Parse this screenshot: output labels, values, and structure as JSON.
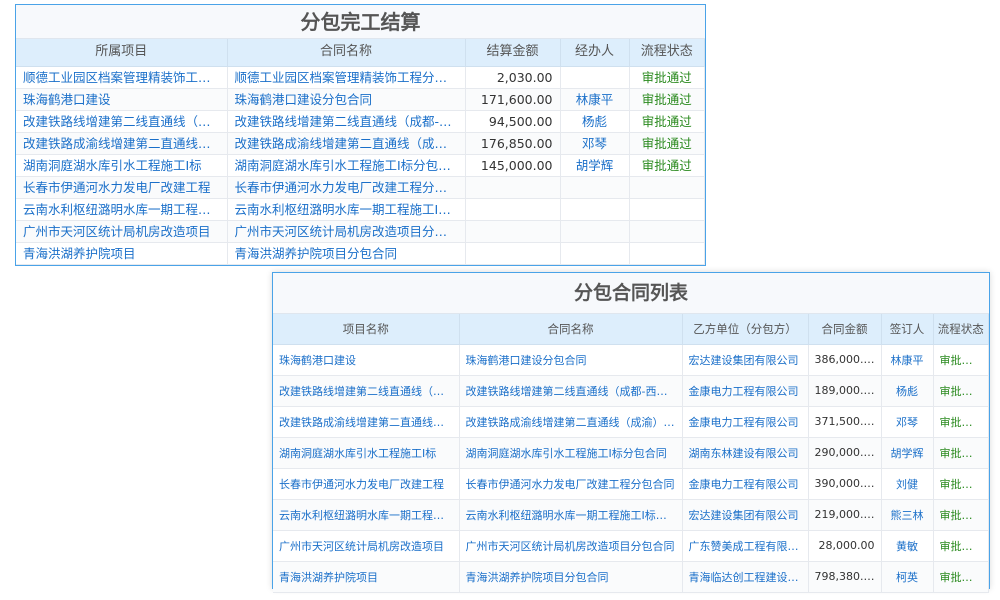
{
  "settlement": {
    "title": "分包完工结算",
    "headers": [
      "所属项目",
      "合同名称",
      "结算金额",
      "经办人",
      "流程状态"
    ],
    "rows": [
      [
        "顺德工业园区档案管理精装饰工程项目",
        "顺德工业园区档案管理精装饰工程分包合同",
        "2,030.00",
        "",
        "审批通过"
      ],
      [
        "珠海鹤港口建设",
        "珠海鹤港口建设分包合同",
        "171,600.00",
        "林康平",
        "审批通过"
      ],
      [
        "改建铁路线增建第二线直通线（成都-西安）",
        "改建铁路线增建第二线直通线（成都-西安）分包合同",
        "94,500.00",
        "杨彪",
        "审批通过"
      ],
      [
        "改建铁路成渝线增建第二直通线项目",
        "改建铁路成渝线增建第二直通线（成渝）分包合同",
        "176,850.00",
        "邓琴",
        "审批通过"
      ],
      [
        "湖南洞庭湖水库引水工程施工Ⅰ标",
        "湖南洞庭湖水库引水工程施工Ⅰ标分包合同",
        "145,000.00",
        "胡学辉",
        "审批通过"
      ],
      [
        "长春市伊通河水力发电厂改建工程",
        "长春市伊通河水力发电厂改建工程分包合同",
        "",
        "",
        ""
      ],
      [
        "云南水利枢纽潞明水库一期工程施工Ⅰ标",
        "云南水利枢纽潞明水库一期工程施工Ⅰ标分包合同",
        "",
        "",
        ""
      ],
      [
        "广州市天河区统计局机房改造项目",
        "广州市天河区统计局机房改造项目分包合同",
        "",
        "",
        ""
      ],
      [
        "青海洪湖养护院项目",
        "青海洪湖养护院项目分包合同",
        "",
        "",
        ""
      ]
    ]
  },
  "contracts": {
    "title": "分包合同列表",
    "headers": [
      "项目名称",
      "合同名称",
      "乙方单位（分包方）",
      "合同金额",
      "签订人",
      "流程状态"
    ],
    "rows": [
      [
        "珠海鹤港口建设",
        "珠海鹤港口建设分包合同",
        "宏达建设集团有限公司",
        "386,000.00",
        "林康平",
        "审批通过"
      ],
      [
        "改建铁路线增建第二线直通线（成都-西安）",
        "改建铁路线增建第二线直通线（成都-西安）分包合同",
        "金康电力工程有限公司",
        "189,000.00",
        "杨彪",
        "审批通过"
      ],
      [
        "改建铁路成渝线增建第二直通线项目",
        "改建铁路成渝线增建第二直通线（成渝）分包合同",
        "金康电力工程有限公司",
        "371,500.00",
        "邓琴",
        "审批通过"
      ],
      [
        "湖南洞庭湖水库引水工程施工Ⅰ标",
        "湖南洞庭湖水库引水工程施工Ⅰ标分包合同",
        "湖南东林建设有限公司",
        "290,000.00",
        "胡学辉",
        "审批通过"
      ],
      [
        "长春市伊通河水力发电厂改建工程",
        "长春市伊通河水力发电厂改建工程分包合同",
        "金康电力工程有限公司",
        "390,000.00",
        "刘健",
        "审批通过"
      ],
      [
        "云南水利枢纽潞明水库一期工程施工Ⅰ标",
        "云南水利枢纽潞明水库一期工程施工Ⅰ标分包合同",
        "宏达建设集团有限公司",
        "219,000.00",
        "熊三林",
        "审批通过"
      ],
      [
        "广州市天河区统计局机房改造项目",
        "广州市天河区统计局机房改造项目分包合同",
        "广东赞美成工程有限公司",
        "28,000.00",
        "黄敏",
        "审批通过"
      ],
      [
        "青海洪湖养护院项目",
        "青海洪湖养护院项目分包合同",
        "青海临达创工程建设有限公司",
        "798,380.00",
        "柯英",
        "审批通过"
      ]
    ]
  },
  "colors": {
    "accent": "#4aa3e8",
    "link": "#1a6fc9",
    "approved": "#2a8a1e",
    "header_bg": "#ddeefc"
  }
}
